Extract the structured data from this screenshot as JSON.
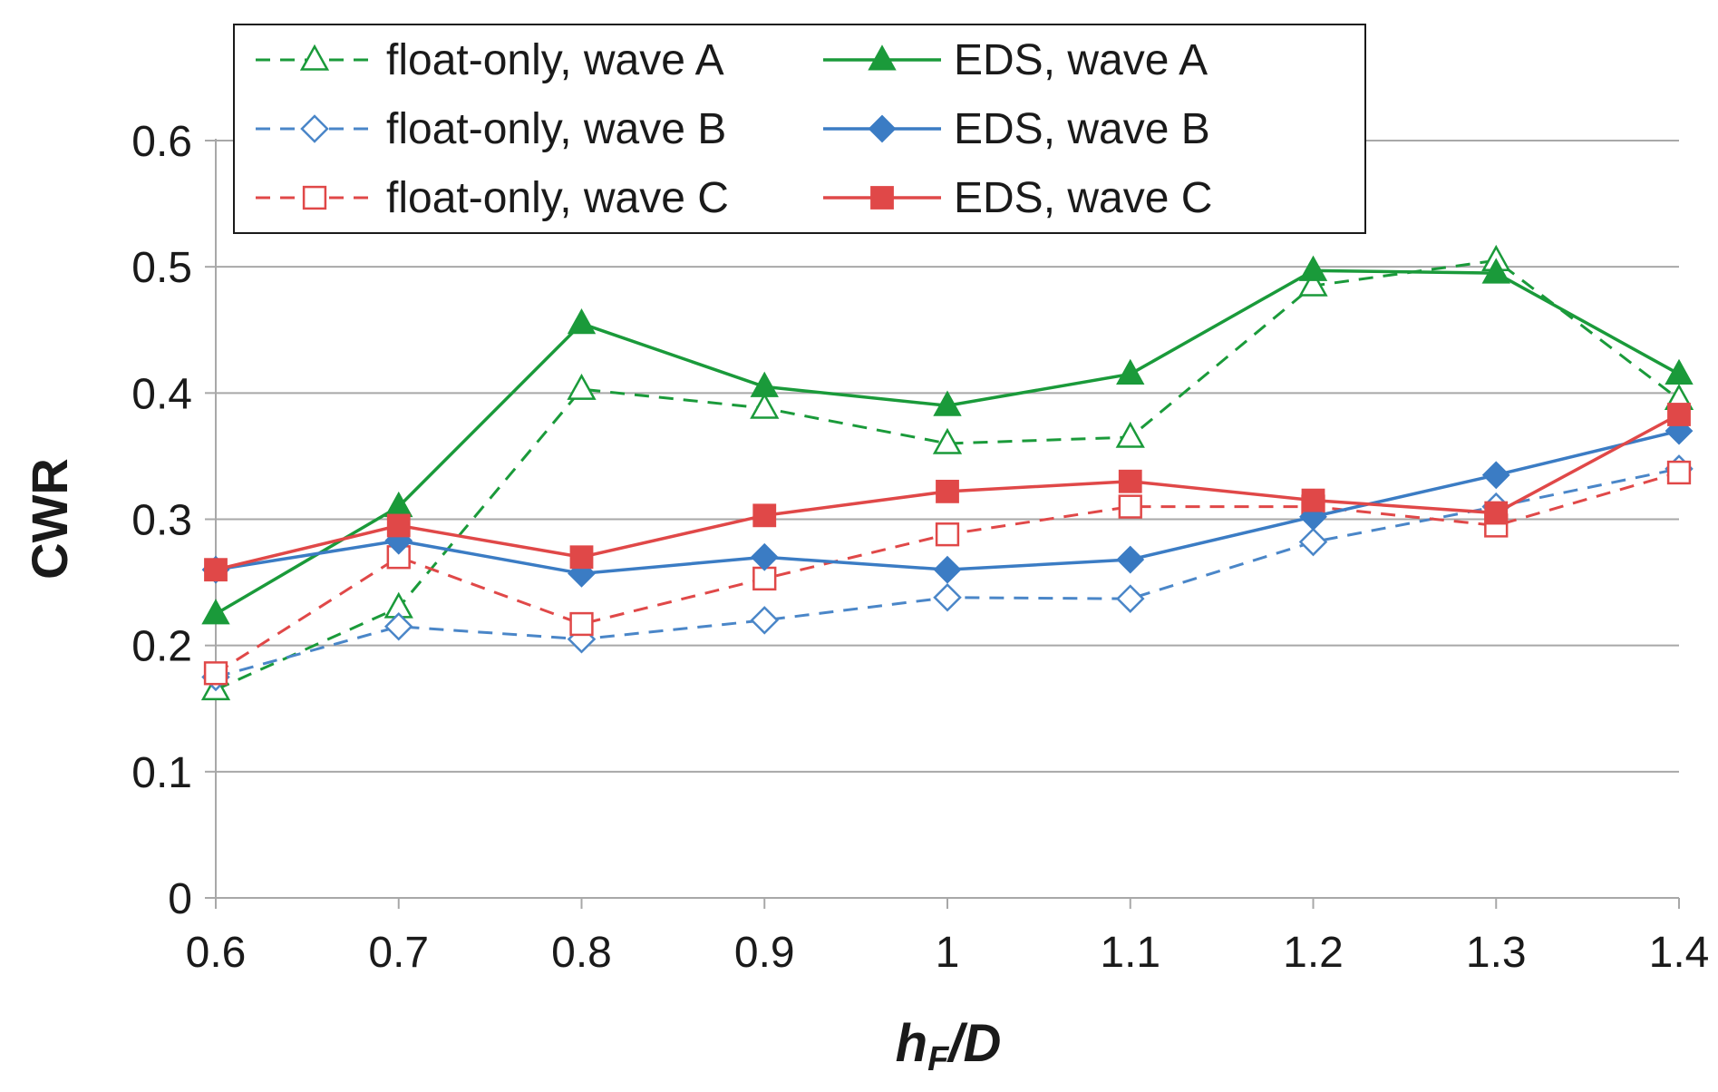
{
  "chart_data": {
    "type": "line",
    "title": "",
    "xlabel": {
      "main": "h",
      "sub": "F",
      "rest": "/D"
    },
    "ylabel": "CWR",
    "x": [
      0.6,
      0.7,
      0.8,
      0.9,
      1.0,
      1.1,
      1.2,
      1.3,
      1.4
    ],
    "xticks": [
      "0.6",
      "0.7",
      "0.8",
      "0.9",
      "1",
      "1.1",
      "1.2",
      "1.3",
      "1.4"
    ],
    "xlim": [
      0.6,
      1.4
    ],
    "yticks": [
      "0",
      "0.1",
      "0.2",
      "0.3",
      "0.4",
      "0.5",
      "0.6"
    ],
    "ylim": [
      0,
      0.6
    ],
    "grid": "horizontal",
    "legend_position": "top",
    "series": [
      {
        "name": "float-only, wave A",
        "color": "#1a9a3a",
        "dash": true,
        "marker": "triangle",
        "filled": false,
        "values": [
          0.165,
          0.23,
          0.403,
          0.388,
          0.36,
          0.365,
          0.485,
          0.505,
          0.395
        ]
      },
      {
        "name": "EDS, wave A",
        "color": "#1a9a3a",
        "dash": false,
        "marker": "triangle",
        "filled": true,
        "values": [
          0.225,
          0.31,
          0.455,
          0.405,
          0.39,
          0.415,
          0.497,
          0.495,
          0.415
        ]
      },
      {
        "name": "float-only, wave B",
        "color": "#4a86c8",
        "dash": true,
        "marker": "diamond",
        "filled": false,
        "values": [
          0.175,
          0.215,
          0.205,
          0.22,
          0.238,
          0.237,
          0.282,
          0.31,
          0.34
        ]
      },
      {
        "name": "EDS, wave B",
        "color": "#3b7cc4",
        "dash": false,
        "marker": "diamond",
        "filled": true,
        "values": [
          0.26,
          0.283,
          0.257,
          0.27,
          0.26,
          0.268,
          0.302,
          0.335,
          0.37
        ]
      },
      {
        "name": "float-only, wave C",
        "color": "#e04848",
        "dash": true,
        "marker": "square",
        "filled": false,
        "values": [
          0.178,
          0.27,
          0.217,
          0.253,
          0.288,
          0.31,
          0.31,
          0.295,
          0.337
        ]
      },
      {
        "name": "EDS, wave C",
        "color": "#e04848",
        "dash": false,
        "marker": "square",
        "filled": true,
        "values": [
          0.26,
          0.295,
          0.27,
          0.303,
          0.322,
          0.33,
          0.315,
          0.305,
          0.383
        ]
      }
    ]
  }
}
